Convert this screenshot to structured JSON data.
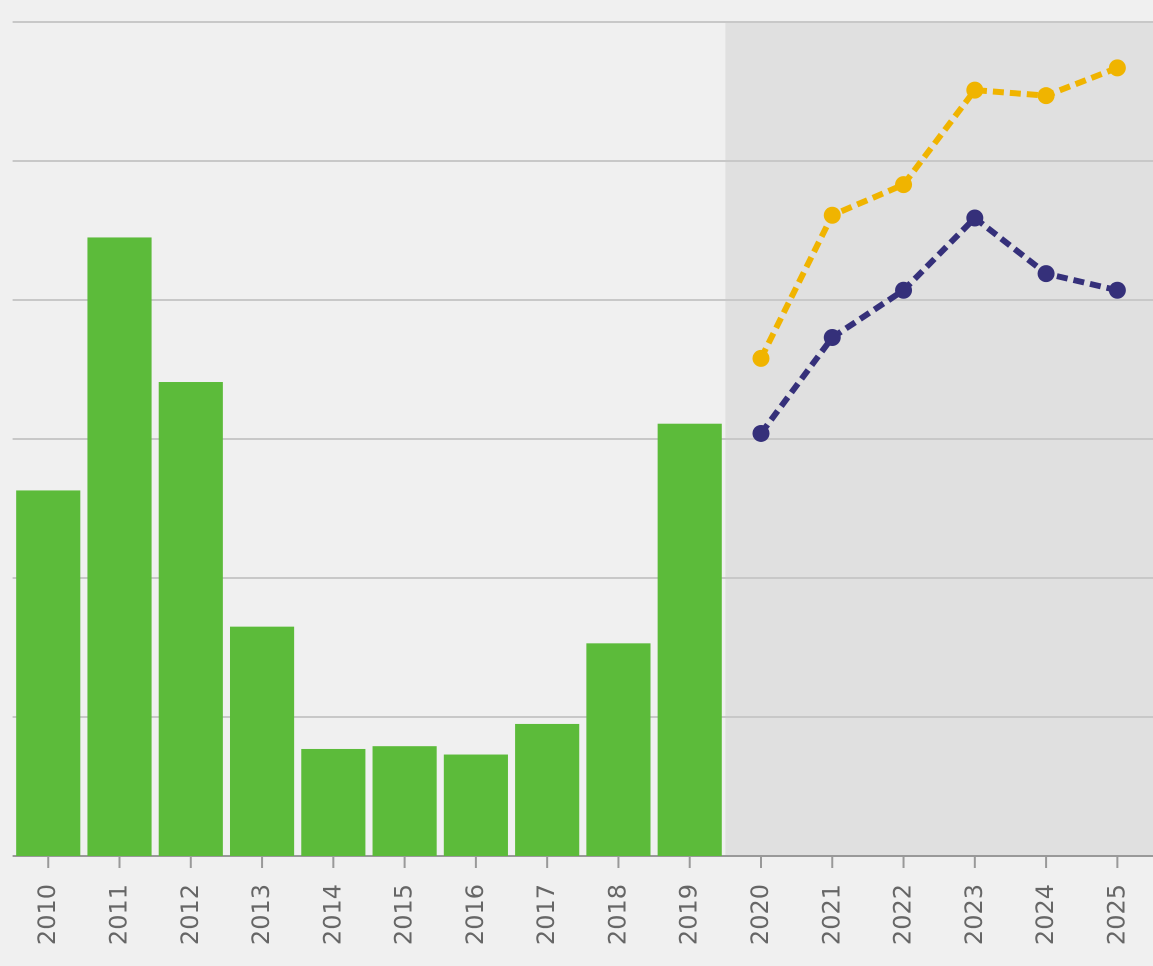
{
  "chart_data": {
    "type": "combo",
    "categories": [
      "2010",
      "2011",
      "2012",
      "2013",
      "2014",
      "2015",
      "2016",
      "2017",
      "2018",
      "2019",
      "2020",
      "2021",
      "2022",
      "2023",
      "2024",
      "2025"
    ],
    "series": [
      {
        "type": "bar",
        "color": "#5cbb3a",
        "values": [
          2.63,
          4.45,
          3.41,
          1.65,
          0.77,
          0.79,
          0.73,
          0.95,
          1.53,
          3.11,
          null,
          null,
          null,
          null,
          null,
          null
        ]
      },
      {
        "type": "line",
        "color": "#f0b400",
        "dashed": true,
        "values": [
          null,
          null,
          null,
          null,
          null,
          null,
          null,
          null,
          null,
          null,
          3.58,
          4.61,
          4.83,
          5.51,
          5.47,
          5.67
        ]
      },
      {
        "type": "line",
        "color": "#35307a",
        "dashed": true,
        "values": [
          null,
          null,
          null,
          null,
          null,
          null,
          null,
          null,
          null,
          null,
          3.04,
          3.73,
          4.07,
          4.59,
          4.19,
          4.07
        ]
      }
    ],
    "ylim": [
      0,
      6
    ],
    "yticks": [
      0,
      1,
      2,
      3,
      4,
      5,
      6
    ],
    "grid": true
  }
}
